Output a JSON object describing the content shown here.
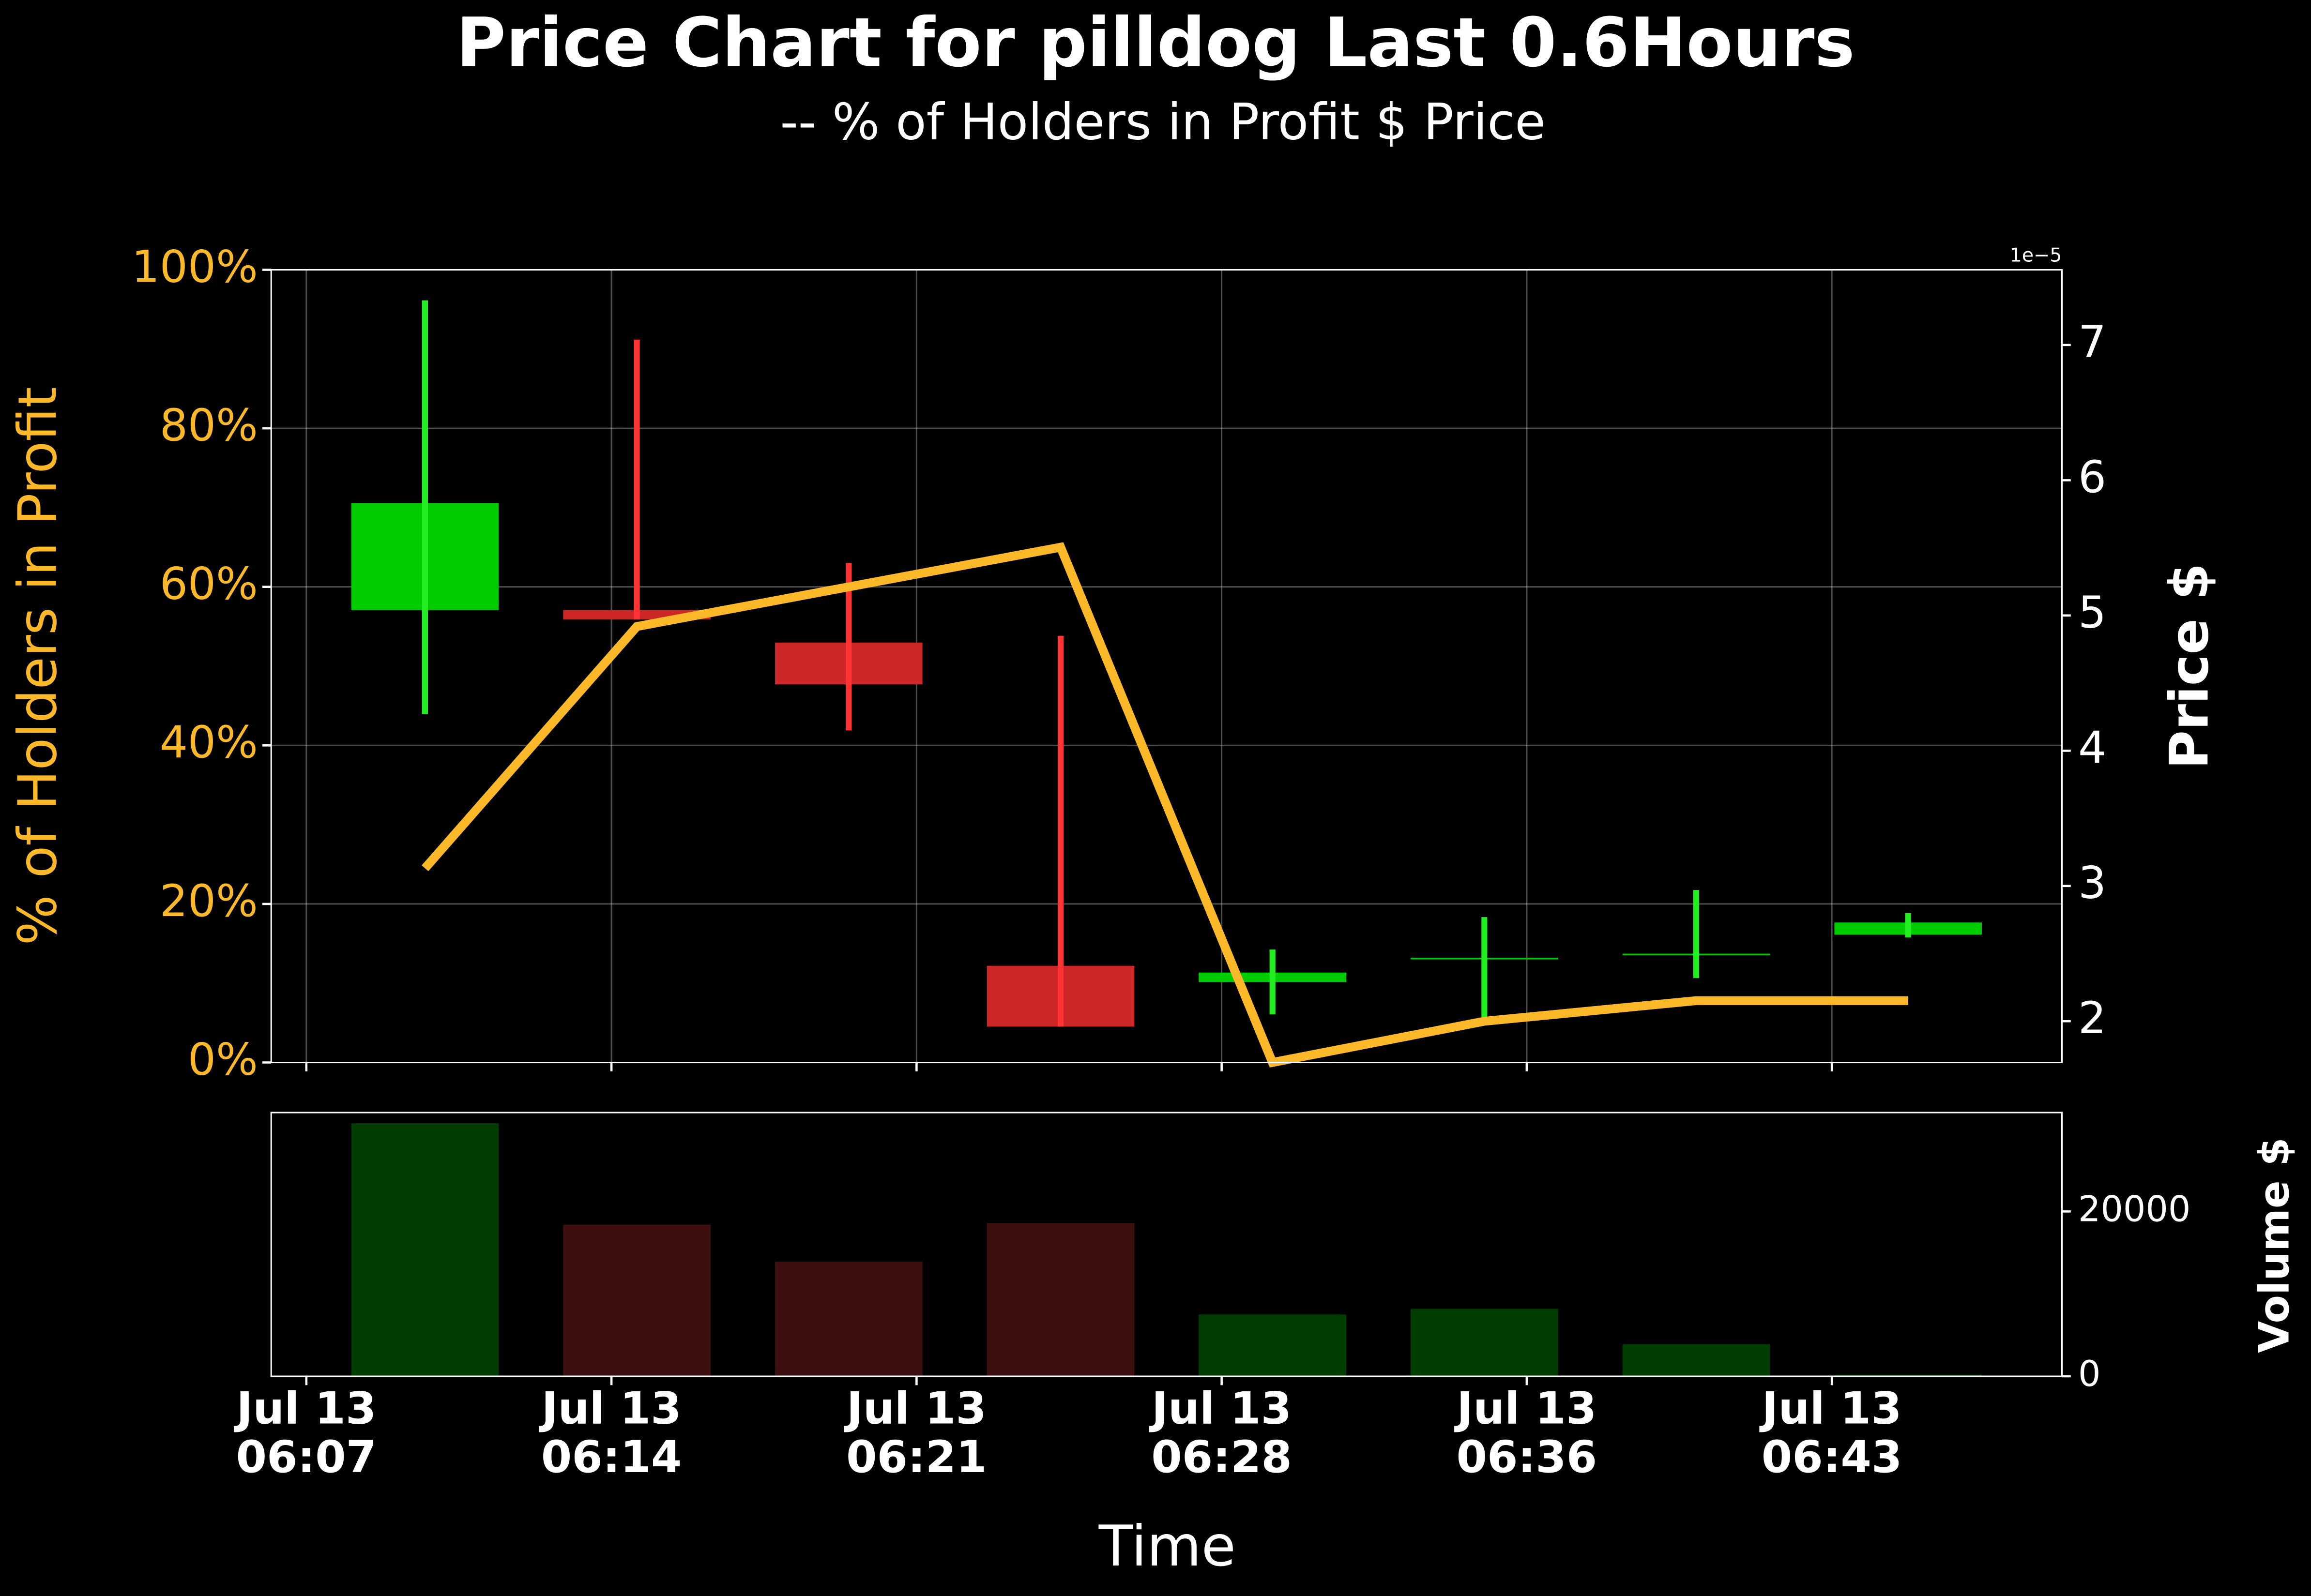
{
  "chart_data": [
    {
      "type": "candlestick",
      "title": "Price Chart for pilldog Last 0.6Hours",
      "subtitle": "-- % of Holders in Profit $ Price",
      "y_label": "% of Holders in Profit",
      "y2_label": "Price $",
      "y2_offset_label": "1e−5",
      "x": [
        10,
        15,
        20,
        25,
        30,
        35,
        40,
        45
      ],
      "xlim": [
        6.37,
        48.63
      ],
      "xticks": [
        7.2,
        14.4,
        21.6,
        28.8,
        36.0,
        43.2
      ],
      "ylim": [
        0,
        100
      ],
      "yticks": [
        {
          "value": 0,
          "label": "0%"
        },
        {
          "value": 20,
          "label": "20%"
        },
        {
          "value": 40,
          "label": "40%"
        },
        {
          "value": 60,
          "label": "60%"
        },
        {
          "value": 80,
          "label": "80%"
        },
        {
          "value": 100,
          "label": "100%"
        }
      ],
      "y2lim": [
        1.695,
        7.556
      ],
      "y2ticks": [
        2,
        3,
        4,
        5,
        6,
        7
      ],
      "grid": true,
      "line": {
        "color": "#fbb829",
        "values": [
          24.5,
          55,
          60,
          65,
          0,
          5.2,
          7.8,
          7.8
        ]
      },
      "candles": {
        "axis": "y2",
        "up_color": "#00cc00",
        "up_wick_color": "#22ee22",
        "down_color": "#cc2626",
        "down_wick_color": "#ff3333",
        "open": [
          5.04,
          5.04,
          4.8,
          2.41,
          2.29,
          2.46,
          2.5,
          2.64
        ],
        "high": [
          7.33,
          7.04,
          5.39,
          4.85,
          2.53,
          2.77,
          2.97,
          2.8
        ],
        "low": [
          4.27,
          4.97,
          4.15,
          1.96,
          2.05,
          1.99,
          2.32,
          2.62
        ],
        "close": [
          5.83,
          4.97,
          4.49,
          1.96,
          2.36,
          2.47,
          2.5,
          2.73
        ]
      }
    },
    {
      "type": "bar",
      "x_label": "Time",
      "y2_label": "Volume $",
      "x": [
        10,
        15,
        20,
        25,
        30,
        35,
        40,
        45
      ],
      "xlim": [
        6.37,
        48.63
      ],
      "xticks": [
        {
          "value": 7.2,
          "label": "Jul 13\n06:07"
        },
        {
          "value": 14.4,
          "label": "Jul 13\n06:14"
        },
        {
          "value": 21.6,
          "label": "Jul 13\n06:21"
        },
        {
          "value": 28.8,
          "label": "Jul 13\n06:28"
        },
        {
          "value": 36.0,
          "label": "Jul 13\n06:36"
        },
        {
          "value": 43.2,
          "label": "Jul 13\n06:43"
        }
      ],
      "values": [
        30700,
        18400,
        13900,
        18600,
        7500,
        8200,
        3900,
        200
      ],
      "colors": [
        "#003d00",
        "#3d0f0f",
        "#3d0f0f",
        "#3d0f0f",
        "#003d00",
        "#003d00",
        "#003d00",
        "#003d00"
      ],
      "y2lim": [
        0,
        32000
      ],
      "y2ticks": [
        0,
        20000
      ]
    }
  ]
}
